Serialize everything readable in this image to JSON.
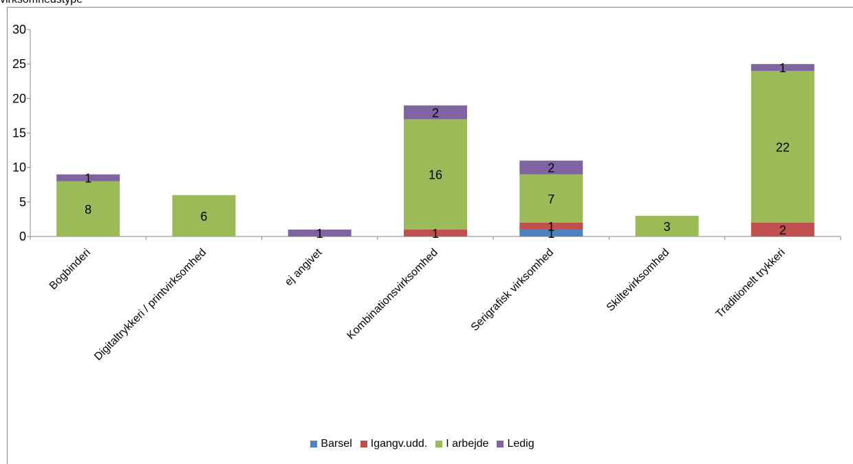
{
  "header": {
    "top_text": "virksomhedstype"
  },
  "chart_data": {
    "type": "bar",
    "stacked": true,
    "title": "",
    "xlabel": "",
    "ylabel": "",
    "ylim": [
      0,
      30
    ],
    "yticks": [
      0,
      5,
      10,
      15,
      20,
      25,
      30
    ],
    "categories": [
      "Bogbinderi",
      "Digitaltrykkeri / printvirksomhed",
      "ej angivet",
      "Kombinationsvirksomhed",
      "Serigrafisk virksomhed",
      "Skiltevirksomhed",
      "Traditionelt trykkeri"
    ],
    "series": [
      {
        "name": "Barsel",
        "color": "#4f81bd",
        "values": [
          0,
          0,
          0,
          0,
          1,
          0,
          0
        ]
      },
      {
        "name": "Igangv.udd.",
        "color": "#c0504d",
        "values": [
          0,
          0,
          0,
          1,
          1,
          0,
          2
        ]
      },
      {
        "name": "I arbejde",
        "color": "#9bbb59",
        "values": [
          8,
          6,
          0,
          16,
          7,
          3,
          22
        ]
      },
      {
        "name": "Ledig",
        "color": "#8064a2",
        "values": [
          1,
          0,
          1,
          2,
          2,
          0,
          1
        ]
      }
    ],
    "legend_position": "bottom",
    "grid": false
  }
}
